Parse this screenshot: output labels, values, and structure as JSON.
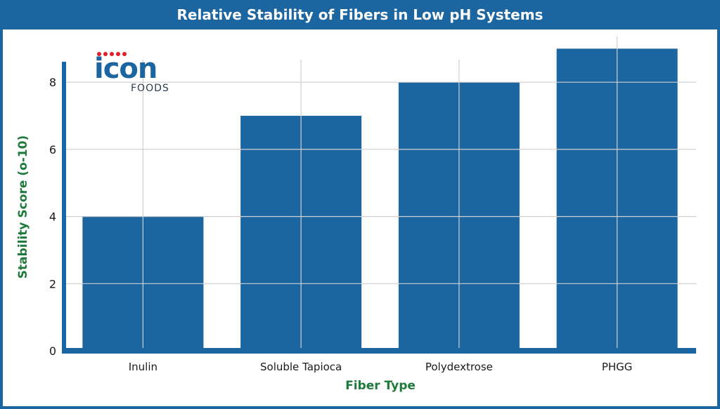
{
  "title": "Relative Stability of Fibers in Low pH Systems",
  "logo": {
    "word": "icon",
    "sub": "FOODS"
  },
  "colors": {
    "bar": "#1b65a0",
    "axis_label": "#1e7a3a",
    "grid": "#d0d0d0",
    "accent": "#e0202a"
  },
  "chart_data": {
    "type": "bar",
    "title": "Relative Stability of Fibers in Low pH Systems",
    "xlabel": "Fiber Type",
    "ylabel": "Stability Score (o-10)",
    "categories": [
      "Inulin",
      "Soluble Tapioca",
      "Polydextrose",
      "PHGG"
    ],
    "values": [
      4,
      7,
      8,
      9
    ],
    "yticks": [
      0,
      2,
      4,
      6,
      8
    ],
    "ylim": [
      0,
      9.3
    ],
    "grid": true,
    "legend": "none"
  }
}
